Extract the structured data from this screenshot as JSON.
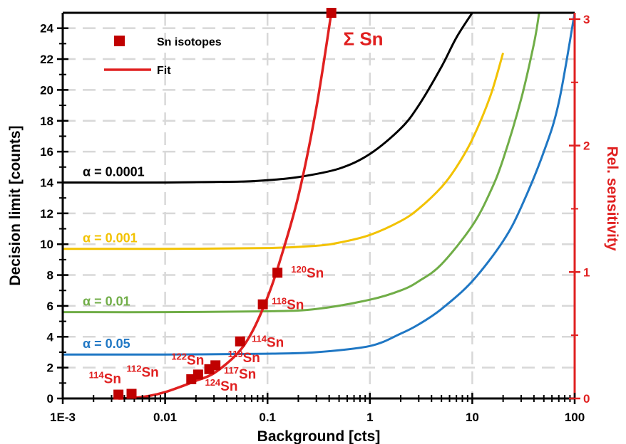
{
  "chart_data": {
    "type": "line",
    "xlabel": "Background [cts]",
    "ylabel": "Decision limit [counts]",
    "y2label": "Rel. sensitivity",
    "xscale": "log",
    "xlim": [
      0.001,
      100
    ],
    "ylim": [
      0,
      25
    ],
    "y2lim": [
      0,
      3.05
    ],
    "grid": true,
    "legend_position": "top-left",
    "x_ticks": [
      {
        "v": 0.001,
        "label": "1E-3"
      },
      {
        "v": 0.01,
        "label": "0.01"
      },
      {
        "v": 0.1,
        "label": "0.1"
      },
      {
        "v": 1,
        "label": "1"
      },
      {
        "v": 10,
        "label": "10"
      },
      {
        "v": 100,
        "label": "100"
      }
    ],
    "y_ticks": [
      {
        "v": 0,
        "label": "0"
      },
      {
        "v": 2,
        "label": "2"
      },
      {
        "v": 4,
        "label": "4"
      },
      {
        "v": 6,
        "label": "6"
      },
      {
        "v": 8,
        "label": "8"
      },
      {
        "v": 10,
        "label": "10"
      },
      {
        "v": 12,
        "label": "12"
      },
      {
        "v": 14,
        "label": "14"
      },
      {
        "v": 16,
        "label": "16"
      },
      {
        "v": 18,
        "label": "18"
      },
      {
        "v": 20,
        "label": "20"
      },
      {
        "v": 22,
        "label": "22"
      },
      {
        "v": 24,
        "label": "24"
      }
    ],
    "y2_ticks": [
      {
        "v": 0,
        "label": "0"
      },
      {
        "v": 1,
        "label": "1"
      },
      {
        "v": 2,
        "label": "2"
      },
      {
        "v": 3,
        "label": "3"
      }
    ],
    "legend": [
      {
        "label": "Sn isotopes",
        "marker": "square",
        "color": "#c00000"
      },
      {
        "label": "Fit",
        "marker": "line",
        "color": "#e02020"
      }
    ],
    "series": [
      {
        "label": "α = 0.0001",
        "color": "#000000",
        "axis": "left",
        "x": [
          0.001,
          0.01,
          0.05,
          0.1,
          0.2,
          0.5,
          1,
          2,
          3,
          5,
          7,
          10
        ],
        "y": [
          14.0,
          14.0,
          14.05,
          14.15,
          14.35,
          14.9,
          15.85,
          17.5,
          19.0,
          21.5,
          23.4,
          25.0
        ]
      },
      {
        "label": "α = 0.001",
        "color": "#f2c200",
        "axis": "left",
        "x": [
          0.001,
          0.01,
          0.1,
          0.3,
          0.5,
          1,
          2,
          3,
          5,
          7,
          10,
          15,
          20
        ],
        "y": [
          9.7,
          9.7,
          9.75,
          9.9,
          10.1,
          10.6,
          11.5,
          12.3,
          13.7,
          15.0,
          16.8,
          19.6,
          22.4
        ]
      },
      {
        "label": "α = 0.01",
        "color": "#70ad47",
        "axis": "left",
        "x": [
          0.001,
          0.01,
          0.1,
          0.3,
          1,
          2,
          3,
          5,
          10,
          15,
          20,
          30,
          40,
          45
        ],
        "y": [
          5.6,
          5.6,
          5.65,
          5.8,
          6.4,
          7.0,
          7.6,
          8.7,
          11.2,
          13.4,
          15.5,
          19.4,
          23.0,
          25.0
        ]
      },
      {
        "label": "α = 0.05",
        "color": "#1f77c4",
        "axis": "left",
        "x": [
          0.001,
          0.01,
          0.1,
          0.3,
          1,
          2,
          3,
          5,
          10,
          20,
          30,
          50,
          70,
          100
        ],
        "y": [
          2.85,
          2.85,
          2.9,
          3.0,
          3.4,
          4.2,
          4.8,
          5.8,
          7.6,
          10.2,
          12.4,
          16.0,
          19.2,
          25.0
        ]
      },
      {
        "label": "Σ Sn",
        "name": "Fit",
        "color": "#e02020",
        "axis": "right",
        "x": [
          0.0035,
          0.005,
          0.007,
          0.01,
          0.015,
          0.02,
          0.03,
          0.05,
          0.07,
          0.1,
          0.13,
          0.2,
          0.3,
          0.42
        ],
        "y": [
          0.0,
          0.005,
          0.02,
          0.05,
          0.1,
          0.14,
          0.2,
          0.35,
          0.52,
          0.8,
          1.07,
          1.6,
          2.3,
          3.05
        ]
      }
    ],
    "points": [
      {
        "label": "Sn isotopes",
        "color": "#c00000",
        "axis": "left",
        "x": [
          0.0035,
          0.0047,
          0.018,
          0.021,
          0.027,
          0.031,
          0.054,
          0.09,
          0.125,
          0.42
        ],
        "y": [
          0.25,
          0.3,
          1.25,
          1.55,
          1.9,
          2.15,
          3.7,
          6.1,
          8.15,
          25.0
        ]
      }
    ],
    "isotope_labels": [
      {
        "mass": "114",
        "element": "Sn",
        "x": 0.0018,
        "y": 1.0
      },
      {
        "mass": "112",
        "element": "Sn",
        "x": 0.0042,
        "y": 1.4
      },
      {
        "mass": "122",
        "element": "Sn",
        "x": 0.0115,
        "y": 2.2
      },
      {
        "mass": "124",
        "element": "Sn",
        "x": 0.0245,
        "y": 0.5
      },
      {
        "mass": "117",
        "element": "Sn",
        "x": 0.0375,
        "y": 1.3
      },
      {
        "mass": "119",
        "element": "Sn",
        "x": 0.041,
        "y": 2.35
      },
      {
        "mass": "114",
        "element": "Sn",
        "x": 0.07,
        "y": 3.35
      },
      {
        "mass": "118",
        "element": "Sn",
        "x": 0.11,
        "y": 5.8
      },
      {
        "mass": "120",
        "element": "Sn",
        "x": 0.17,
        "y": 7.85
      }
    ],
    "sum_label": {
      "text": "Σ Sn",
      "x": 0.55,
      "y": 22.9
    }
  }
}
